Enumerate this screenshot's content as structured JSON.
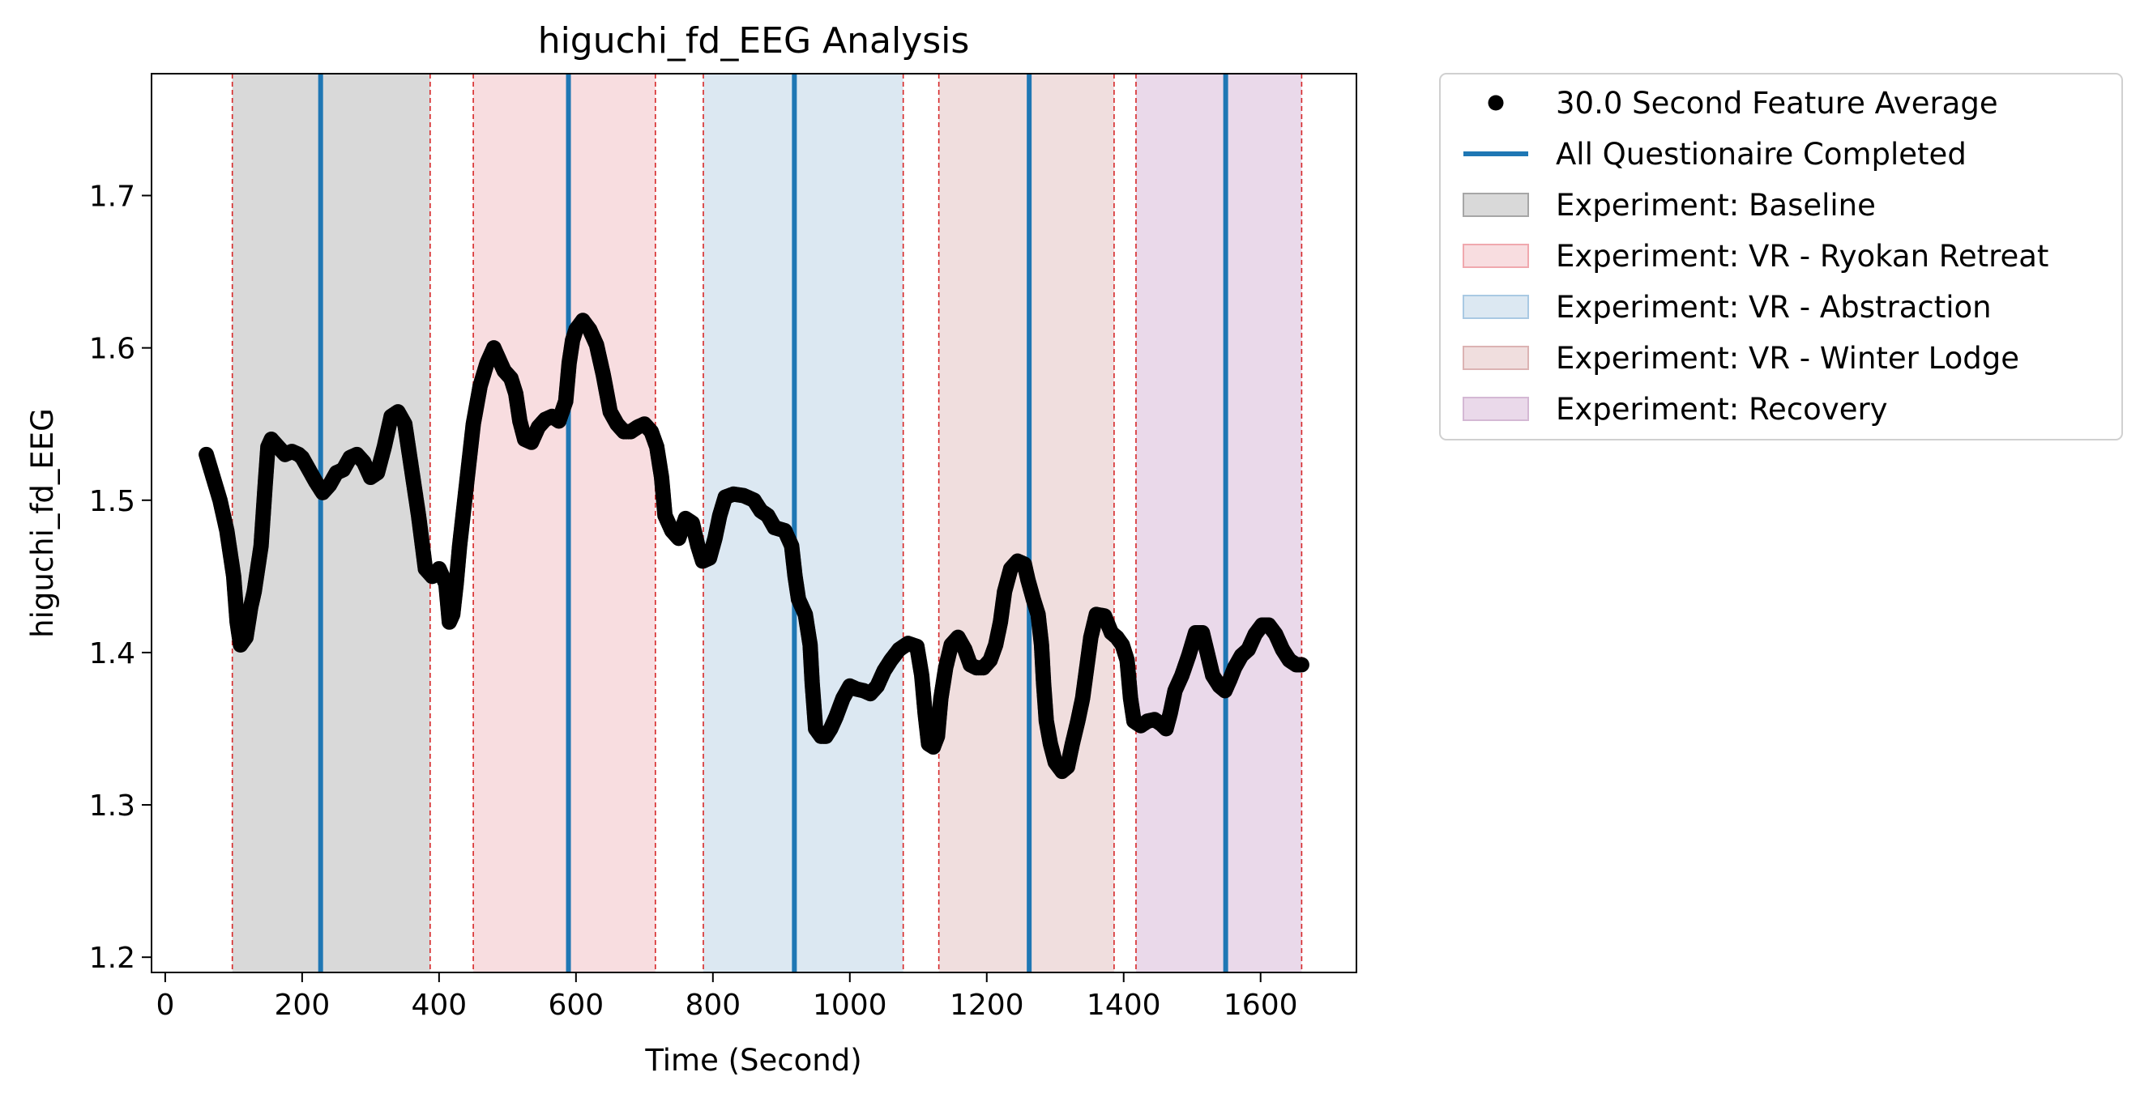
{
  "chart_data": {
    "type": "scatter",
    "title": "higuchi_fd_EEG Analysis",
    "xlabel": "Time (Second)",
    "ylabel": "higuchi_fd_EEG",
    "xlim": [
      -20,
      1740
    ],
    "ylim": [
      1.19,
      1.78
    ],
    "xticks": [
      0,
      200,
      400,
      600,
      800,
      1000,
      1200,
      1400,
      1600
    ],
    "yticks": [
      1.2,
      1.3,
      1.4,
      1.5,
      1.6,
      1.7
    ],
    "grid": false,
    "legend_position": "outside-upper-right",
    "experiments": [
      {
        "name": "Experiment: Baseline",
        "start": 98,
        "end": 387,
        "color": "#d9d9d9",
        "stroke": "#a6a6a6",
        "questionnaire": 227
      },
      {
        "name": "Experiment: VR - Ryokan Retreat",
        "start": 450,
        "end": 716,
        "color": "#f8dde0",
        "stroke": "#f0a8ae",
        "questionnaire": 589
      },
      {
        "name": "Experiment: VR - Abstraction",
        "start": 786,
        "end": 1078,
        "color": "#dce8f2",
        "stroke": "#a9c9e3",
        "questionnaire": 919
      },
      {
        "name": "Experiment: VR - Winter Lodge",
        "start": 1130,
        "end": 1386,
        "color": "#f0dede",
        "stroke": "#dcb3b3",
        "questionnaire": 1262
      },
      {
        "name": "Experiment: Recovery",
        "start": 1418,
        "end": 1660,
        "color": "#ead9ea",
        "stroke": "#d4b8d4",
        "questionnaire": 1549
      }
    ],
    "phase_boundaries": [
      98,
      387,
      450,
      716,
      786,
      1078,
      1130,
      1386,
      1418,
      1660
    ],
    "questionnaire_color": "#1f77b4",
    "boundary_color": "#d62728",
    "point_color": "#000000",
    "series": [
      {
        "name": "30.0 Second Feature Average",
        "points": [
          [
            60,
            1.53
          ],
          [
            70,
            1.515
          ],
          [
            80,
            1.5
          ],
          [
            90,
            1.48
          ],
          [
            100,
            1.45
          ],
          [
            105,
            1.42
          ],
          [
            110,
            1.405
          ],
          [
            118,
            1.41
          ],
          [
            125,
            1.43
          ],
          [
            130,
            1.44
          ],
          [
            135,
            1.455
          ],
          [
            140,
            1.47
          ],
          [
            143,
            1.49
          ],
          [
            146,
            1.51
          ],
          [
            150,
            1.535
          ],
          [
            155,
            1.54
          ],
          [
            165,
            1.535
          ],
          [
            175,
            1.53
          ],
          [
            185,
            1.532
          ],
          [
            195,
            1.53
          ],
          [
            200,
            1.528
          ],
          [
            210,
            1.52
          ],
          [
            220,
            1.512
          ],
          [
            230,
            1.505
          ],
          [
            240,
            1.51
          ],
          [
            250,
            1.518
          ],
          [
            260,
            1.52
          ],
          [
            270,
            1.528
          ],
          [
            280,
            1.53
          ],
          [
            290,
            1.525
          ],
          [
            300,
            1.515
          ],
          [
            310,
            1.518
          ],
          [
            320,
            1.535
          ],
          [
            330,
            1.555
          ],
          [
            340,
            1.558
          ],
          [
            350,
            1.55
          ],
          [
            360,
            1.52
          ],
          [
            370,
            1.49
          ],
          [
            380,
            1.455
          ],
          [
            390,
            1.45
          ],
          [
            400,
            1.455
          ],
          [
            410,
            1.445
          ],
          [
            415,
            1.42
          ],
          [
            420,
            1.425
          ],
          [
            425,
            1.445
          ],
          [
            430,
            1.47
          ],
          [
            435,
            1.49
          ],
          [
            440,
            1.51
          ],
          [
            450,
            1.55
          ],
          [
            460,
            1.575
          ],
          [
            470,
            1.59
          ],
          [
            480,
            1.6
          ],
          [
            488,
            1.592
          ],
          [
            495,
            1.585
          ],
          [
            505,
            1.58
          ],
          [
            512,
            1.57
          ],
          [
            518,
            1.552
          ],
          [
            525,
            1.54
          ],
          [
            535,
            1.538
          ],
          [
            545,
            1.548
          ],
          [
            555,
            1.553
          ],
          [
            565,
            1.555
          ],
          [
            575,
            1.552
          ],
          [
            585,
            1.565
          ],
          [
            590,
            1.59
          ],
          [
            595,
            1.605
          ],
          [
            600,
            1.612
          ],
          [
            610,
            1.618
          ],
          [
            620,
            1.612
          ],
          [
            630,
            1.602
          ],
          [
            640,
            1.582
          ],
          [
            650,
            1.558
          ],
          [
            660,
            1.55
          ],
          [
            670,
            1.545
          ],
          [
            680,
            1.545
          ],
          [
            690,
            1.548
          ],
          [
            700,
            1.55
          ],
          [
            710,
            1.545
          ],
          [
            718,
            1.535
          ],
          [
            725,
            1.515
          ],
          [
            730,
            1.49
          ],
          [
            740,
            1.48
          ],
          [
            750,
            1.475
          ],
          [
            760,
            1.488
          ],
          [
            770,
            1.485
          ],
          [
            778,
            1.47
          ],
          [
            785,
            1.46
          ],
          [
            795,
            1.462
          ],
          [
            803,
            1.475
          ],
          [
            810,
            1.49
          ],
          [
            818,
            1.502
          ],
          [
            830,
            1.504
          ],
          [
            845,
            1.503
          ],
          [
            860,
            1.5
          ],
          [
            870,
            1.493
          ],
          [
            880,
            1.49
          ],
          [
            890,
            1.482
          ],
          [
            905,
            1.48
          ],
          [
            915,
            1.47
          ],
          [
            920,
            1.45
          ],
          [
            925,
            1.435
          ],
          [
            935,
            1.425
          ],
          [
            942,
            1.405
          ],
          [
            945,
            1.38
          ],
          [
            950,
            1.35
          ],
          [
            958,
            1.345
          ],
          [
            965,
            1.345
          ],
          [
            972,
            1.35
          ],
          [
            980,
            1.358
          ],
          [
            990,
            1.37
          ],
          [
            1000,
            1.378
          ],
          [
            1010,
            1.376
          ],
          [
            1020,
            1.375
          ],
          [
            1030,
            1.373
          ],
          [
            1040,
            1.378
          ],
          [
            1050,
            1.388
          ],
          [
            1060,
            1.395
          ],
          [
            1072,
            1.402
          ],
          [
            1085,
            1.406
          ],
          [
            1098,
            1.404
          ],
          [
            1105,
            1.385
          ],
          [
            1110,
            1.36
          ],
          [
            1115,
            1.34
          ],
          [
            1122,
            1.338
          ],
          [
            1128,
            1.345
          ],
          [
            1133,
            1.37
          ],
          [
            1140,
            1.39
          ],
          [
            1148,
            1.405
          ],
          [
            1158,
            1.41
          ],
          [
            1168,
            1.402
          ],
          [
            1176,
            1.392
          ],
          [
            1185,
            1.39
          ],
          [
            1195,
            1.39
          ],
          [
            1205,
            1.395
          ],
          [
            1213,
            1.405
          ],
          [
            1220,
            1.42
          ],
          [
            1226,
            1.44
          ],
          [
            1235,
            1.455
          ],
          [
            1245,
            1.46
          ],
          [
            1255,
            1.458
          ],
          [
            1260,
            1.448
          ],
          [
            1268,
            1.435
          ],
          [
            1275,
            1.425
          ],
          [
            1280,
            1.405
          ],
          [
            1283,
            1.38
          ],
          [
            1287,
            1.355
          ],
          [
            1293,
            1.34
          ],
          [
            1300,
            1.328
          ],
          [
            1310,
            1.322
          ],
          [
            1318,
            1.325
          ],
          [
            1325,
            1.34
          ],
          [
            1333,
            1.355
          ],
          [
            1340,
            1.37
          ],
          [
            1346,
            1.39
          ],
          [
            1352,
            1.41
          ],
          [
            1360,
            1.425
          ],
          [
            1372,
            1.424
          ],
          [
            1382,
            1.413
          ],
          [
            1390,
            1.41
          ],
          [
            1398,
            1.405
          ],
          [
            1405,
            1.395
          ],
          [
            1410,
            1.37
          ],
          [
            1415,
            1.355
          ],
          [
            1425,
            1.352
          ],
          [
            1435,
            1.355
          ],
          [
            1445,
            1.356
          ],
          [
            1455,
            1.353
          ],
          [
            1462,
            1.35
          ],
          [
            1468,
            1.36
          ],
          [
            1475,
            1.375
          ],
          [
            1485,
            1.385
          ],
          [
            1495,
            1.398
          ],
          [
            1505,
            1.413
          ],
          [
            1515,
            1.413
          ],
          [
            1522,
            1.4
          ],
          [
            1530,
            1.385
          ],
          [
            1540,
            1.378
          ],
          [
            1548,
            1.375
          ],
          [
            1555,
            1.382
          ],
          [
            1562,
            1.39
          ],
          [
            1572,
            1.398
          ],
          [
            1582,
            1.402
          ],
          [
            1592,
            1.412
          ],
          [
            1602,
            1.418
          ],
          [
            1612,
            1.418
          ],
          [
            1622,
            1.412
          ],
          [
            1632,
            1.402
          ],
          [
            1642,
            1.395
          ],
          [
            1652,
            1.392
          ],
          [
            1660,
            1.392
          ]
        ]
      }
    ],
    "legend": [
      {
        "label": "30.0 Second Feature Average",
        "kind": "point",
        "color": "#000000"
      },
      {
        "label": "All Questionaire Completed",
        "kind": "line",
        "color": "#1f77b4"
      },
      {
        "label": "Experiment: Baseline",
        "kind": "patch",
        "color": "#d9d9d9",
        "stroke": "#a6a6a6"
      },
      {
        "label": "Experiment: VR - Ryokan Retreat",
        "kind": "patch",
        "color": "#f8dde0",
        "stroke": "#f0a8ae"
      },
      {
        "label": "Experiment: VR - Abstraction",
        "kind": "patch",
        "color": "#dce8f2",
        "stroke": "#a9c9e3"
      },
      {
        "label": "Experiment: VR - Winter Lodge",
        "kind": "patch",
        "color": "#f0dede",
        "stroke": "#dcb3b3"
      },
      {
        "label": "Experiment: Recovery",
        "kind": "patch",
        "color": "#ead9ea",
        "stroke": "#d4b8d4"
      }
    ]
  }
}
